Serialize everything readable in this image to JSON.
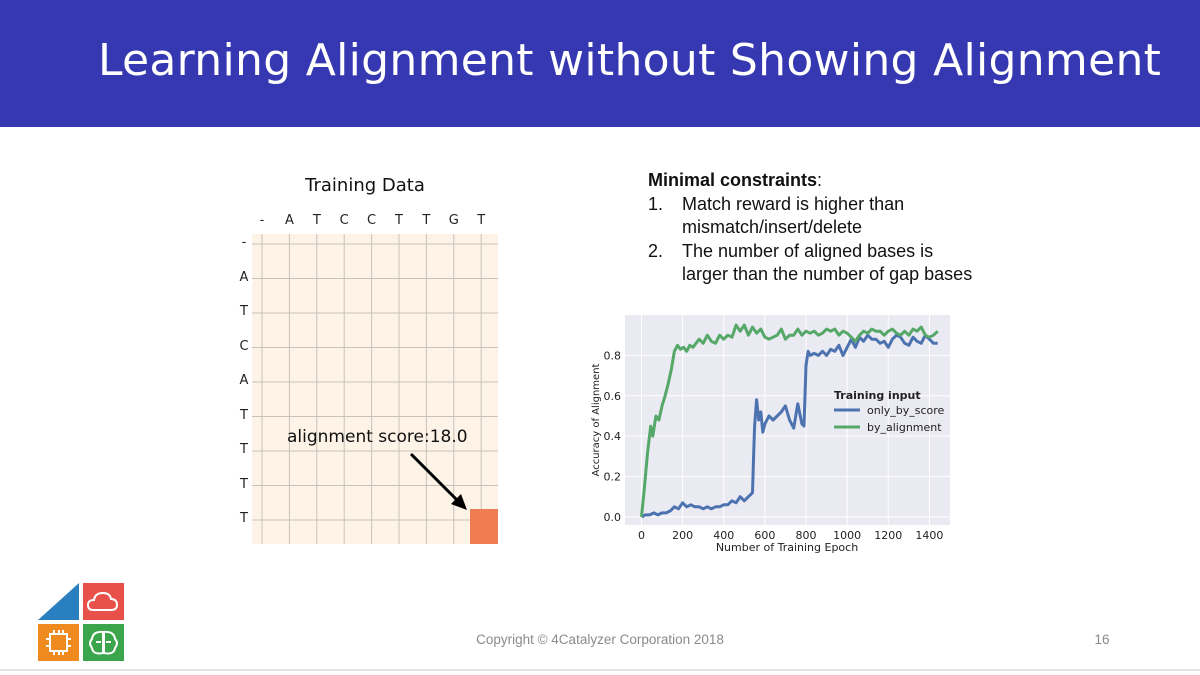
{
  "slide": {
    "title": "Learning Alignment without Showing Alignment",
    "footer": "Copyright © 4Catalyzer Corporation 2018",
    "page_number": "16",
    "header_color": "#3538b0"
  },
  "left_figure": {
    "title": "Training Data",
    "col_labels": [
      "-",
      "A",
      "T",
      "C",
      "C",
      "T",
      "T",
      "G",
      "T"
    ],
    "row_labels": [
      "-",
      "A",
      "T",
      "C",
      "A",
      "T",
      "T",
      "T",
      "T"
    ],
    "annotation": "alignment score:18.0",
    "highlight_color": "#f07c53",
    "cell_color": "#fdf3e6"
  },
  "constraints": {
    "heading": "Minimal constraints",
    "heading_suffix": ":",
    "items": [
      {
        "num": "1.",
        "line1": "Match reward is higher than",
        "line2": "mismatch/insert/delete"
      },
      {
        "num": "2.",
        "line1": "The number of aligned bases is",
        "line2": "larger than the number of gap bases"
      }
    ]
  },
  "chart_data": {
    "type": "line",
    "xlabel": "Number of Training Epoch",
    "ylabel": "Accuracy of Alignment",
    "xlim": [
      -80,
      1500
    ],
    "ylim": [
      -0.04,
      1.0
    ],
    "xticks": [
      0,
      200,
      400,
      600,
      800,
      1000,
      1200,
      1400
    ],
    "yticks": [
      0.0,
      0.2,
      0.4,
      0.6,
      0.8
    ],
    "ytick_labels": [
      "0.0",
      "0.2",
      "0.4",
      "0.6",
      "0.8"
    ],
    "grid": true,
    "legend_title": "Training input",
    "legend_position": "right",
    "series": [
      {
        "name": "only_by_score",
        "color": "#4c72b0",
        "x": [
          0,
          20,
          40,
          60,
          80,
          100,
          120,
          140,
          160,
          180,
          200,
          220,
          240,
          260,
          280,
          300,
          320,
          340,
          360,
          380,
          400,
          420,
          440,
          460,
          480,
          500,
          520,
          530,
          540,
          545,
          550,
          560,
          570,
          580,
          590,
          600,
          620,
          640,
          660,
          680,
          700,
          720,
          740,
          760,
          780,
          790,
          800,
          810,
          820,
          840,
          860,
          880,
          900,
          920,
          940,
          960,
          980,
          1000,
          1020,
          1040,
          1060,
          1080,
          1100,
          1120,
          1140,
          1160,
          1180,
          1200,
          1220,
          1240,
          1260,
          1280,
          1300,
          1320,
          1340,
          1360,
          1380,
          1400,
          1420,
          1440
        ],
        "y": [
          0.0,
          0.01,
          0.01,
          0.02,
          0.01,
          0.02,
          0.02,
          0.03,
          0.05,
          0.04,
          0.07,
          0.05,
          0.06,
          0.05,
          0.05,
          0.04,
          0.05,
          0.04,
          0.05,
          0.05,
          0.06,
          0.06,
          0.08,
          0.07,
          0.1,
          0.08,
          0.1,
          0.11,
          0.12,
          0.3,
          0.45,
          0.58,
          0.48,
          0.52,
          0.42,
          0.46,
          0.5,
          0.48,
          0.5,
          0.52,
          0.55,
          0.48,
          0.44,
          0.56,
          0.46,
          0.45,
          0.75,
          0.82,
          0.8,
          0.81,
          0.8,
          0.82,
          0.8,
          0.83,
          0.82,
          0.85,
          0.8,
          0.84,
          0.88,
          0.84,
          0.89,
          0.87,
          0.9,
          0.88,
          0.88,
          0.86,
          0.87,
          0.84,
          0.88,
          0.9,
          0.89,
          0.86,
          0.85,
          0.89,
          0.87,
          0.86,
          0.9,
          0.88,
          0.86,
          0.86
        ]
      },
      {
        "name": "by_alignment",
        "color": "#55a868",
        "x": [
          0,
          15,
          30,
          45,
          55,
          70,
          85,
          100,
          115,
          130,
          145,
          160,
          175,
          190,
          205,
          220,
          235,
          250,
          265,
          280,
          300,
          320,
          340,
          360,
          380,
          400,
          420,
          440,
          460,
          480,
          500,
          520,
          540,
          560,
          580,
          600,
          620,
          640,
          660,
          680,
          700,
          720,
          740,
          760,
          780,
          800,
          820,
          840,
          860,
          880,
          900,
          920,
          940,
          960,
          980,
          1000,
          1020,
          1040,
          1060,
          1080,
          1100,
          1120,
          1140,
          1160,
          1180,
          1200,
          1220,
          1240,
          1260,
          1280,
          1300,
          1320,
          1340,
          1360,
          1380,
          1400,
          1420,
          1440
        ],
        "y": [
          0.0,
          0.15,
          0.32,
          0.45,
          0.4,
          0.5,
          0.48,
          0.55,
          0.6,
          0.66,
          0.73,
          0.82,
          0.85,
          0.83,
          0.84,
          0.82,
          0.85,
          0.84,
          0.86,
          0.88,
          0.86,
          0.9,
          0.87,
          0.86,
          0.9,
          0.88,
          0.9,
          0.89,
          0.95,
          0.92,
          0.95,
          0.9,
          0.94,
          0.91,
          0.93,
          0.89,
          0.88,
          0.89,
          0.9,
          0.93,
          0.88,
          0.9,
          0.9,
          0.93,
          0.9,
          0.92,
          0.91,
          0.92,
          0.9,
          0.91,
          0.93,
          0.92,
          0.93,
          0.9,
          0.92,
          0.91,
          0.89,
          0.87,
          0.9,
          0.92,
          0.91,
          0.93,
          0.92,
          0.92,
          0.9,
          0.92,
          0.93,
          0.91,
          0.9,
          0.92,
          0.9,
          0.93,
          0.92,
          0.94,
          0.9,
          0.89,
          0.9,
          0.92
        ]
      }
    ]
  },
  "logo": {
    "colors": [
      "#2a7fc0",
      "#e8514a",
      "#ef8a1e",
      "#3aa54a"
    ],
    "icons": [
      "triangle-tile",
      "cloud-icon",
      "chip-icon",
      "brain-icon"
    ]
  }
}
